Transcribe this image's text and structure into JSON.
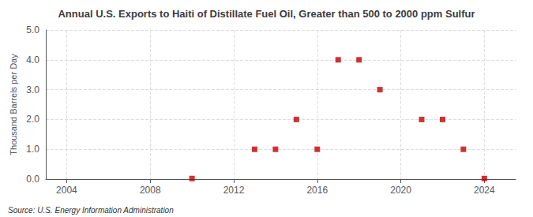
{
  "chart_data": {
    "type": "scatter",
    "title": "Annual U.S. Exports to Haiti of Distillate Fuel Oil, Greater than 500 to 2000 ppm Sulfur",
    "ylabel": "Thousand Barrels per Day",
    "annotation": "Source: U.S. Energy Information Administration",
    "x": [
      2010,
      2013,
      2014,
      2015,
      2016,
      2017,
      2018,
      2019,
      2021,
      2022,
      2023,
      2024
    ],
    "values": [
      0.02,
      1.0,
      1.0,
      2.0,
      1.0,
      4.0,
      4.0,
      3.0,
      2.0,
      2.0,
      1.0,
      0.02
    ],
    "color": "#c00000",
    "marker": "square",
    "xlim": [
      2003.0,
      2025.5
    ],
    "xticks": [
      2004,
      2008,
      2012,
      2016,
      2020,
      2024
    ],
    "ylim": [
      0.0,
      5.0
    ],
    "yticks": [
      {
        "value": 0.0,
        "label": "0.0"
      },
      {
        "value": 1.0,
        "label": "1.0"
      },
      {
        "value": 2.0,
        "label": "2.0"
      },
      {
        "value": 3.0,
        "label": "3.0"
      },
      {
        "value": 4.0,
        "label": "4.0"
      },
      {
        "value": 5.0,
        "label": "5.0"
      }
    ],
    "grid": true
  }
}
